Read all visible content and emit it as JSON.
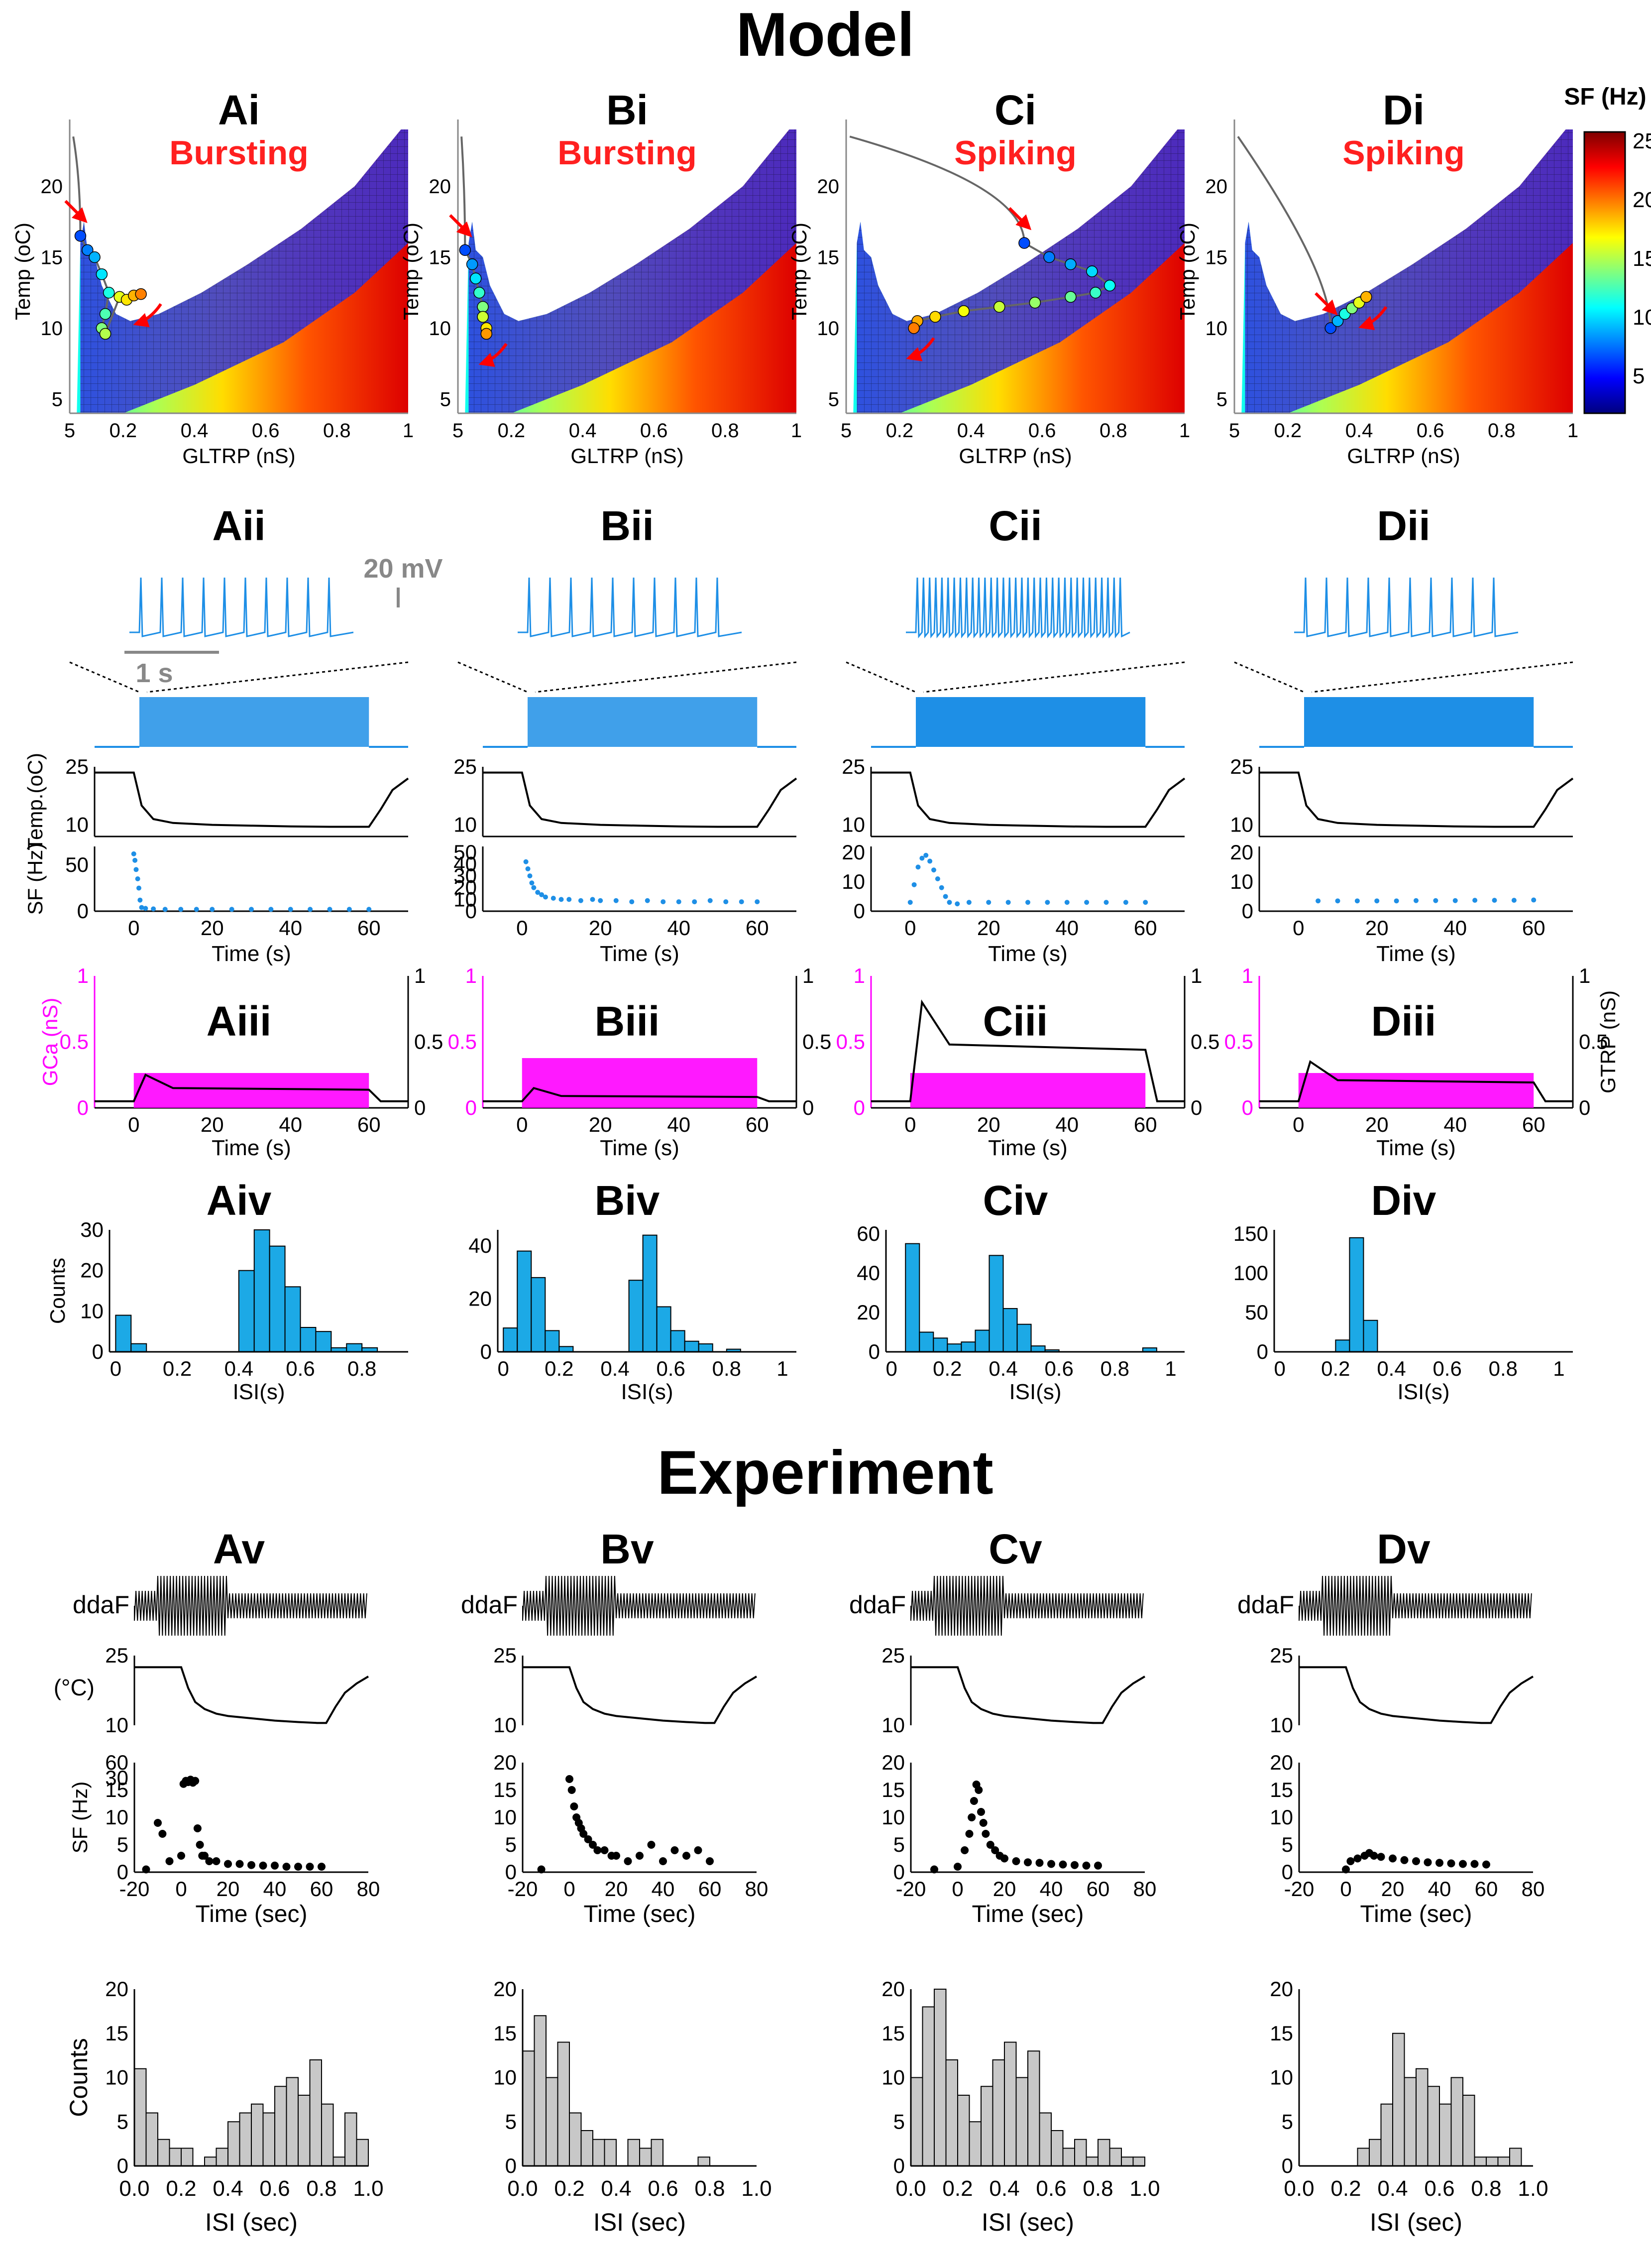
{
  "titles": {
    "model": "Model",
    "experiment": "Experiment"
  },
  "colorbar": {
    "label": "SF (Hz)",
    "ticks": [
      "25",
      "20",
      "15",
      "10",
      "5"
    ],
    "range": [
      0,
      25
    ]
  },
  "units": {
    "gltrp_axis": "GLTRP (nS)",
    "temp_axis": "Temp (oC)"
  },
  "panels_i": [
    {
      "id": "Ai",
      "mode": "Bursting"
    },
    {
      "id": "Bi",
      "mode": "Bursting"
    },
    {
      "id": "Ci",
      "mode": "Spiking"
    },
    {
      "id": "Di",
      "mode": "Spiking"
    }
  ],
  "panels_ii": [
    "Aii",
    "Bii",
    "Cii",
    "Dii"
  ],
  "panels_iii": [
    "Aiii",
    "Biii",
    "Ciii",
    "Diii"
  ],
  "panels_iv": [
    "Aiv",
    "Biv",
    "Civ",
    "Div"
  ],
  "panels_v": [
    "Av",
    "Bv",
    "Cv",
    "Dv"
  ],
  "scale_bars": {
    "voltage": "20 mV",
    "time": "1 s"
  },
  "labels": {
    "temp_model": "Temp.(oC)",
    "sf_model": "SF (Hz)",
    "time_s": "Time (s)",
    "gca": "GCa (nS)",
    "gtrp": "GTRP (nS)",
    "counts": "Counts",
    "isi_s": "ISI(s)",
    "ddaf": "ddaF",
    "celsius": "(°C)",
    "sf_exp": "SF (Hz)",
    "time_sec": "Time (sec)",
    "isi_sec": "ISI (sec)"
  },
  "chart_data": [
    {
      "type": "heatmap",
      "name": "Ai",
      "x_ticks": [
        "5",
        "0.2",
        "0.4",
        "0.6",
        "0.8",
        "1"
      ],
      "y_ticks": [
        "5",
        "10",
        "15",
        "20"
      ],
      "xlim": [
        0.05,
        1.0
      ],
      "ylim": [
        4,
        24
      ],
      "trajectory_points": [
        [
          0.08,
          16.5
        ],
        [
          0.1,
          15.5
        ],
        [
          0.12,
          15.0
        ],
        [
          0.14,
          13.8
        ],
        [
          0.16,
          12.5
        ],
        [
          0.15,
          11.0
        ],
        [
          0.14,
          10.0
        ],
        [
          0.15,
          9.6
        ],
        [
          0.19,
          12.2
        ],
        [
          0.21,
          12.0
        ],
        [
          0.23,
          12.3
        ],
        [
          0.25,
          12.4
        ]
      ]
    },
    {
      "type": "heatmap",
      "name": "Bi",
      "x_ticks": [
        "5",
        "0.2",
        "0.4",
        "0.6",
        "0.8",
        "1"
      ],
      "y_ticks": [
        "5",
        "10",
        "15",
        "20"
      ],
      "xlim": [
        0.05,
        1.0
      ],
      "ylim": [
        4,
        24
      ],
      "trajectory_points": [
        [
          0.07,
          15.5
        ],
        [
          0.09,
          14.5
        ],
        [
          0.1,
          13.5
        ],
        [
          0.11,
          12.5
        ],
        [
          0.12,
          11.5
        ],
        [
          0.12,
          10.8
        ],
        [
          0.13,
          10.0
        ],
        [
          0.13,
          9.6
        ]
      ]
    },
    {
      "type": "heatmap",
      "name": "Ci",
      "x_ticks": [
        "5",
        "0.2",
        "0.4",
        "0.6",
        "0.8",
        "1"
      ],
      "y_ticks": [
        "5",
        "10",
        "15",
        "20"
      ],
      "xlim": [
        0.05,
        1.0
      ],
      "ylim": [
        4,
        24
      ],
      "trajectory_points": [
        [
          0.55,
          16.0
        ],
        [
          0.62,
          15.0
        ],
        [
          0.68,
          14.5
        ],
        [
          0.74,
          14.0
        ],
        [
          0.79,
          13.0
        ],
        [
          0.75,
          12.5
        ],
        [
          0.68,
          12.2
        ],
        [
          0.58,
          11.8
        ],
        [
          0.48,
          11.5
        ],
        [
          0.38,
          11.2
        ],
        [
          0.3,
          10.8
        ],
        [
          0.25,
          10.5
        ],
        [
          0.24,
          10.0
        ]
      ]
    },
    {
      "type": "heatmap",
      "name": "Di",
      "x_ticks": [
        "5",
        "0.2",
        "0.4",
        "0.6",
        "0.8",
        "1"
      ],
      "y_ticks": [
        "5",
        "10",
        "15",
        "20"
      ],
      "xlim": [
        0.05,
        1.0
      ],
      "ylim": [
        4,
        24
      ],
      "trajectory_points": [
        [
          0.32,
          10.0
        ],
        [
          0.34,
          10.5
        ],
        [
          0.36,
          11.0
        ],
        [
          0.38,
          11.4
        ],
        [
          0.4,
          11.8
        ],
        [
          0.42,
          12.2
        ]
      ]
    },
    {
      "type": "line",
      "name": "model-temp",
      "x_ticks": [
        "0",
        "20",
        "40",
        "60"
      ],
      "y_ticks": [
        "10",
        "15",
        "20",
        "25"
      ],
      "ylim": [
        7,
        25
      ],
      "xlim": [
        -10,
        70
      ],
      "x": [
        -10,
        0,
        2,
        5,
        10,
        20,
        30,
        40,
        50,
        60,
        63,
        66,
        70
      ],
      "y": [
        23.5,
        23.5,
        15,
        11.5,
        10.5,
        10,
        9.8,
        9.6,
        9.5,
        9.5,
        14,
        19,
        22
      ]
    },
    {
      "type": "scatter",
      "name": "Aii-SF",
      "y_ticks": [
        "0",
        "50"
      ],
      "ylim": [
        0,
        70
      ],
      "xlim": [
        -10,
        70
      ],
      "x": [
        0,
        0.3,
        0.6,
        1,
        1.3,
        1.6,
        2,
        3,
        5,
        8,
        12,
        16,
        20,
        25,
        30,
        35,
        40,
        45,
        50,
        55,
        60
      ],
      "y": [
        62,
        55,
        45,
        35,
        25,
        12,
        4,
        3,
        2.5,
        2,
        2,
        2,
        2,
        2,
        2,
        2,
        2,
        2,
        2,
        2,
        2
      ]
    },
    {
      "type": "scatter",
      "name": "Bii-SF",
      "y_ticks": [
        "0",
        "10",
        "20",
        "30",
        "40",
        "50"
      ],
      "ylim": [
        0,
        55
      ],
      "xlim": [
        -10,
        70
      ],
      "x": [
        1,
        1.5,
        2,
        2.5,
        3,
        4,
        5,
        6,
        8,
        10,
        12,
        15,
        18,
        20,
        24,
        28,
        32,
        36,
        40,
        44,
        48,
        52,
        56,
        60
      ],
      "y": [
        42,
        36,
        30,
        24,
        20,
        16,
        14,
        12,
        11,
        10,
        10,
        9,
        10,
        9,
        9,
        8,
        9,
        8,
        8,
        8,
        9,
        8,
        8,
        8
      ]
    },
    {
      "type": "scatter",
      "name": "Cii-SF",
      "y_ticks": [
        "0",
        "10",
        "20"
      ],
      "ylim": [
        0,
        22
      ],
      "xlim": [
        -10,
        70
      ],
      "x": [
        0,
        1,
        2,
        3,
        4,
        5,
        6,
        7,
        8,
        9,
        10,
        12,
        15,
        20,
        25,
        30,
        35,
        40,
        45,
        50,
        55,
        60
      ],
      "y": [
        3,
        9,
        15,
        18,
        19,
        17,
        14,
        11,
        8,
        5,
        3,
        2.5,
        3,
        3,
        3,
        3,
        3,
        3,
        3,
        3,
        3,
        3
      ]
    },
    {
      "type": "scatter",
      "name": "Dii-SF",
      "y_ticks": [
        "0",
        "10",
        "20"
      ],
      "ylim": [
        0,
        22
      ],
      "xlim": [
        -10,
        70
      ],
      "x": [
        5,
        10,
        15,
        20,
        25,
        30,
        35,
        40,
        45,
        50,
        55,
        60
      ],
      "y": [
        3.5,
        3.5,
        3.5,
        3.5,
        3.5,
        3.6,
        3.6,
        3.6,
        3.7,
        3.7,
        3.7,
        3.8
      ]
    },
    {
      "type": "bar",
      "name": "Aiv",
      "x_ticks": [
        "0",
        "0.2",
        "0.4",
        "0.6",
        "0.8"
      ],
      "y_ticks": [
        "0",
        "10",
        "20",
        "30"
      ],
      "ylim": [
        0,
        30
      ],
      "xlim": [
        -0.02,
        0.95
      ],
      "bin_width": 0.05,
      "bin_left": [
        0.0,
        0.05,
        0.4,
        0.45,
        0.5,
        0.55,
        0.6,
        0.65,
        0.7,
        0.75,
        0.8
      ],
      "values": [
        9,
        2,
        20,
        30,
        26,
        16,
        6,
        5,
        1,
        2,
        1
      ]
    },
    {
      "type": "bar",
      "name": "Biv",
      "x_ticks": [
        "0",
        "0.2",
        "0.4",
        "0.6",
        "0.8",
        "1"
      ],
      "y_ticks": [
        "0",
        "20",
        "40"
      ],
      "ylim": [
        0,
        46
      ],
      "xlim": [
        -0.02,
        1.05
      ],
      "bin_width": 0.05,
      "bin_left": [
        0.0,
        0.05,
        0.1,
        0.15,
        0.2,
        0.45,
        0.5,
        0.55,
        0.6,
        0.65,
        0.7,
        0.8
      ],
      "values": [
        9,
        38,
        28,
        8,
        2,
        27,
        44,
        17,
        8,
        4,
        3,
        1
      ]
    },
    {
      "type": "bar",
      "name": "Civ",
      "x_ticks": [
        "0",
        "0.2",
        "0.4",
        "0.6",
        "0.8",
        "1"
      ],
      "y_ticks": [
        "0",
        "20",
        "40",
        "60"
      ],
      "ylim": [
        0,
        62
      ],
      "xlim": [
        -0.02,
        1.05
      ],
      "bin_width": 0.05,
      "bin_left": [
        0.05,
        0.1,
        0.15,
        0.2,
        0.25,
        0.3,
        0.35,
        0.4,
        0.45,
        0.5,
        0.55,
        0.9
      ],
      "values": [
        55,
        10,
        7,
        4,
        5,
        11,
        49,
        22,
        14,
        3,
        1,
        2
      ]
    },
    {
      "type": "bar",
      "name": "Div",
      "x_ticks": [
        "0",
        "0.2",
        "0.4",
        "0.6",
        "0.8",
        "1"
      ],
      "y_ticks": [
        "0",
        "50",
        "100",
        "150"
      ],
      "ylim": [
        0,
        155
      ],
      "xlim": [
        -0.02,
        1.05
      ],
      "bin_width": 0.05,
      "bin_left": [
        0.2,
        0.25,
        0.3
      ],
      "values": [
        15,
        145,
        40
      ]
    },
    {
      "type": "line",
      "name": "experiment-temp",
      "y_ticks": [
        "10",
        "25"
      ],
      "ylim": [
        10,
        25
      ],
      "xlim": [
        -20,
        80
      ],
      "x": [
        -20,
        0,
        3,
        6,
        10,
        15,
        20,
        30,
        40,
        50,
        58,
        62,
        66,
        70,
        75,
        80
      ],
      "y": [
        22.5,
        22.5,
        18,
        15,
        13.5,
        12.5,
        12,
        11.5,
        11,
        10.7,
        10.5,
        10.5,
        14,
        17,
        19,
        20.5
      ]
    },
    {
      "type": "scatter",
      "name": "Av-SF",
      "x_ticks": [
        "-20",
        "0",
        "20",
        "40",
        "60",
        "80"
      ],
      "y_ticks": [
        "0",
        "5",
        "10",
        "15",
        "30",
        "60"
      ],
      "ylim": [
        0,
        60
      ],
      "xlim": [
        -20,
        80
      ],
      "x": [
        -15,
        -10,
        -8,
        -5,
        0,
        1,
        2,
        3,
        4,
        5,
        6,
        7,
        8,
        9,
        10,
        12,
        15,
        20,
        25,
        30,
        35,
        40,
        45,
        50,
        55,
        60
      ],
      "y": [
        0.5,
        9,
        7,
        2,
        3,
        25,
        30,
        28,
        32,
        27,
        30,
        8,
        5,
        3,
        3,
        2,
        2,
        1.5,
        1.5,
        1.3,
        1.2,
        1.2,
        1,
        1,
        1,
        1
      ]
    },
    {
      "type": "scatter",
      "name": "Bv-SF",
      "x_ticks": [
        "-20",
        "0",
        "20",
        "40",
        "60",
        "80"
      ],
      "y_ticks": [
        "0",
        "5",
        "10",
        "15",
        "20"
      ],
      "ylim": [
        0,
        20
      ],
      "xlim": [
        -20,
        80
      ],
      "x": [
        -12,
        0,
        1,
        2,
        3,
        4,
        5,
        6,
        8,
        10,
        12,
        15,
        18,
        20,
        25,
        30,
        35,
        40,
        45,
        50,
        55,
        60
      ],
      "y": [
        0.5,
        17,
        15,
        12,
        10,
        9,
        8,
        7,
        6,
        5,
        4,
        4,
        3,
        3,
        2,
        3,
        5,
        2,
        4,
        3,
        4,
        2
      ]
    },
    {
      "type": "scatter",
      "name": "Cv-SF",
      "x_ticks": [
        "-20",
        "0",
        "20",
        "40",
        "60",
        "80"
      ],
      "y_ticks": [
        "0",
        "5",
        "10",
        "15",
        "20"
      ],
      "ylim": [
        0,
        20
      ],
      "xlim": [
        -20,
        80
      ],
      "x": [
        -10,
        0,
        3,
        5,
        6,
        7,
        8,
        9,
        10,
        11,
        12,
        14,
        16,
        18,
        20,
        25,
        30,
        35,
        40,
        45,
        50,
        55,
        60
      ],
      "y": [
        0.5,
        1,
        4,
        7,
        10,
        13,
        16,
        15,
        11,
        9,
        7,
        5,
        4,
        3,
        2.5,
        2,
        1.8,
        1.7,
        1.5,
        1.4,
        1.3,
        1.2,
        1.2
      ]
    },
    {
      "type": "scatter",
      "name": "Dv-SF",
      "x_ticks": [
        "-20",
        "0",
        "20",
        "40",
        "60",
        "80"
      ],
      "y_ticks": [
        "0",
        "5",
        "10",
        "15",
        "20"
      ],
      "ylim": [
        0,
        20
      ],
      "xlim": [
        -20,
        80
      ],
      "x": [
        0,
        2,
        5,
        8,
        10,
        12,
        15,
        20,
        25,
        30,
        35,
        40,
        45,
        50,
        55,
        60
      ],
      "y": [
        0.5,
        2,
        2.5,
        3,
        3.5,
        3,
        2.8,
        2.5,
        2.2,
        2,
        1.8,
        1.7,
        1.6,
        1.5,
        1.5,
        1.4
      ]
    },
    {
      "type": "bar",
      "name": "Av-ISI",
      "x_ticks": [
        "0.0",
        "0.2",
        "0.4",
        "0.6",
        "0.8",
        "1.0"
      ],
      "y_ticks": [
        "0",
        "5",
        "10",
        "15",
        "20"
      ],
      "ylim": [
        0,
        20
      ],
      "xlim": [
        0,
        1.0
      ],
      "bin_width": 0.05,
      "values": [
        11,
        6,
        3,
        2,
        2,
        0,
        1,
        2,
        5,
        6,
        7,
        6,
        9,
        10,
        8,
        12,
        7,
        1,
        6,
        3
      ]
    },
    {
      "type": "bar",
      "name": "Bv-ISI",
      "x_ticks": [
        "0.0",
        "0.2",
        "0.4",
        "0.6",
        "0.8",
        "1.0"
      ],
      "y_ticks": [
        "0",
        "5",
        "10",
        "15",
        "20"
      ],
      "ylim": [
        0,
        20
      ],
      "xlim": [
        0,
        1.0
      ],
      "bin_width": 0.05,
      "values": [
        13,
        17,
        10,
        14,
        6,
        4,
        3,
        3,
        0,
        3,
        2,
        3,
        0,
        0,
        0,
        1
      ]
    },
    {
      "type": "bar",
      "name": "Cv-ISI",
      "x_ticks": [
        "0.0",
        "0.2",
        "0.4",
        "0.6",
        "0.8",
        "1.0"
      ],
      "y_ticks": [
        "0",
        "5",
        "10",
        "15",
        "20"
      ],
      "ylim": [
        0,
        20
      ],
      "xlim": [
        0,
        1.0
      ],
      "bin_width": 0.05,
      "values": [
        10,
        18,
        20,
        12,
        8,
        5,
        9,
        12,
        14,
        10,
        13,
        6,
        4,
        2,
        3,
        1,
        3,
        2,
        1,
        1
      ]
    },
    {
      "type": "bar",
      "name": "Dv-ISI",
      "x_ticks": [
        "0.0",
        "0.2",
        "0.4",
        "0.6",
        "0.8",
        "1.0"
      ],
      "y_ticks": [
        "0",
        "5",
        "10",
        "15",
        "20"
      ],
      "ylim": [
        0,
        20
      ],
      "xlim": [
        0,
        1.0
      ],
      "bin_width": 0.05,
      "values": [
        0,
        0,
        0,
        0,
        0,
        2,
        3,
        7,
        15,
        10,
        11,
        9,
        7,
        10,
        8,
        1,
        1,
        1,
        2,
        0
      ]
    }
  ]
}
